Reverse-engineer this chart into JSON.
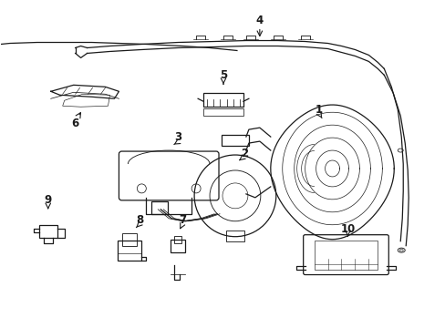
{
  "background_color": "#ffffff",
  "line_color": "#1a1a1a",
  "fig_width": 4.89,
  "fig_height": 3.6,
  "dpi": 100,
  "label_fontsize": 8.5,
  "lw": 0.9
}
